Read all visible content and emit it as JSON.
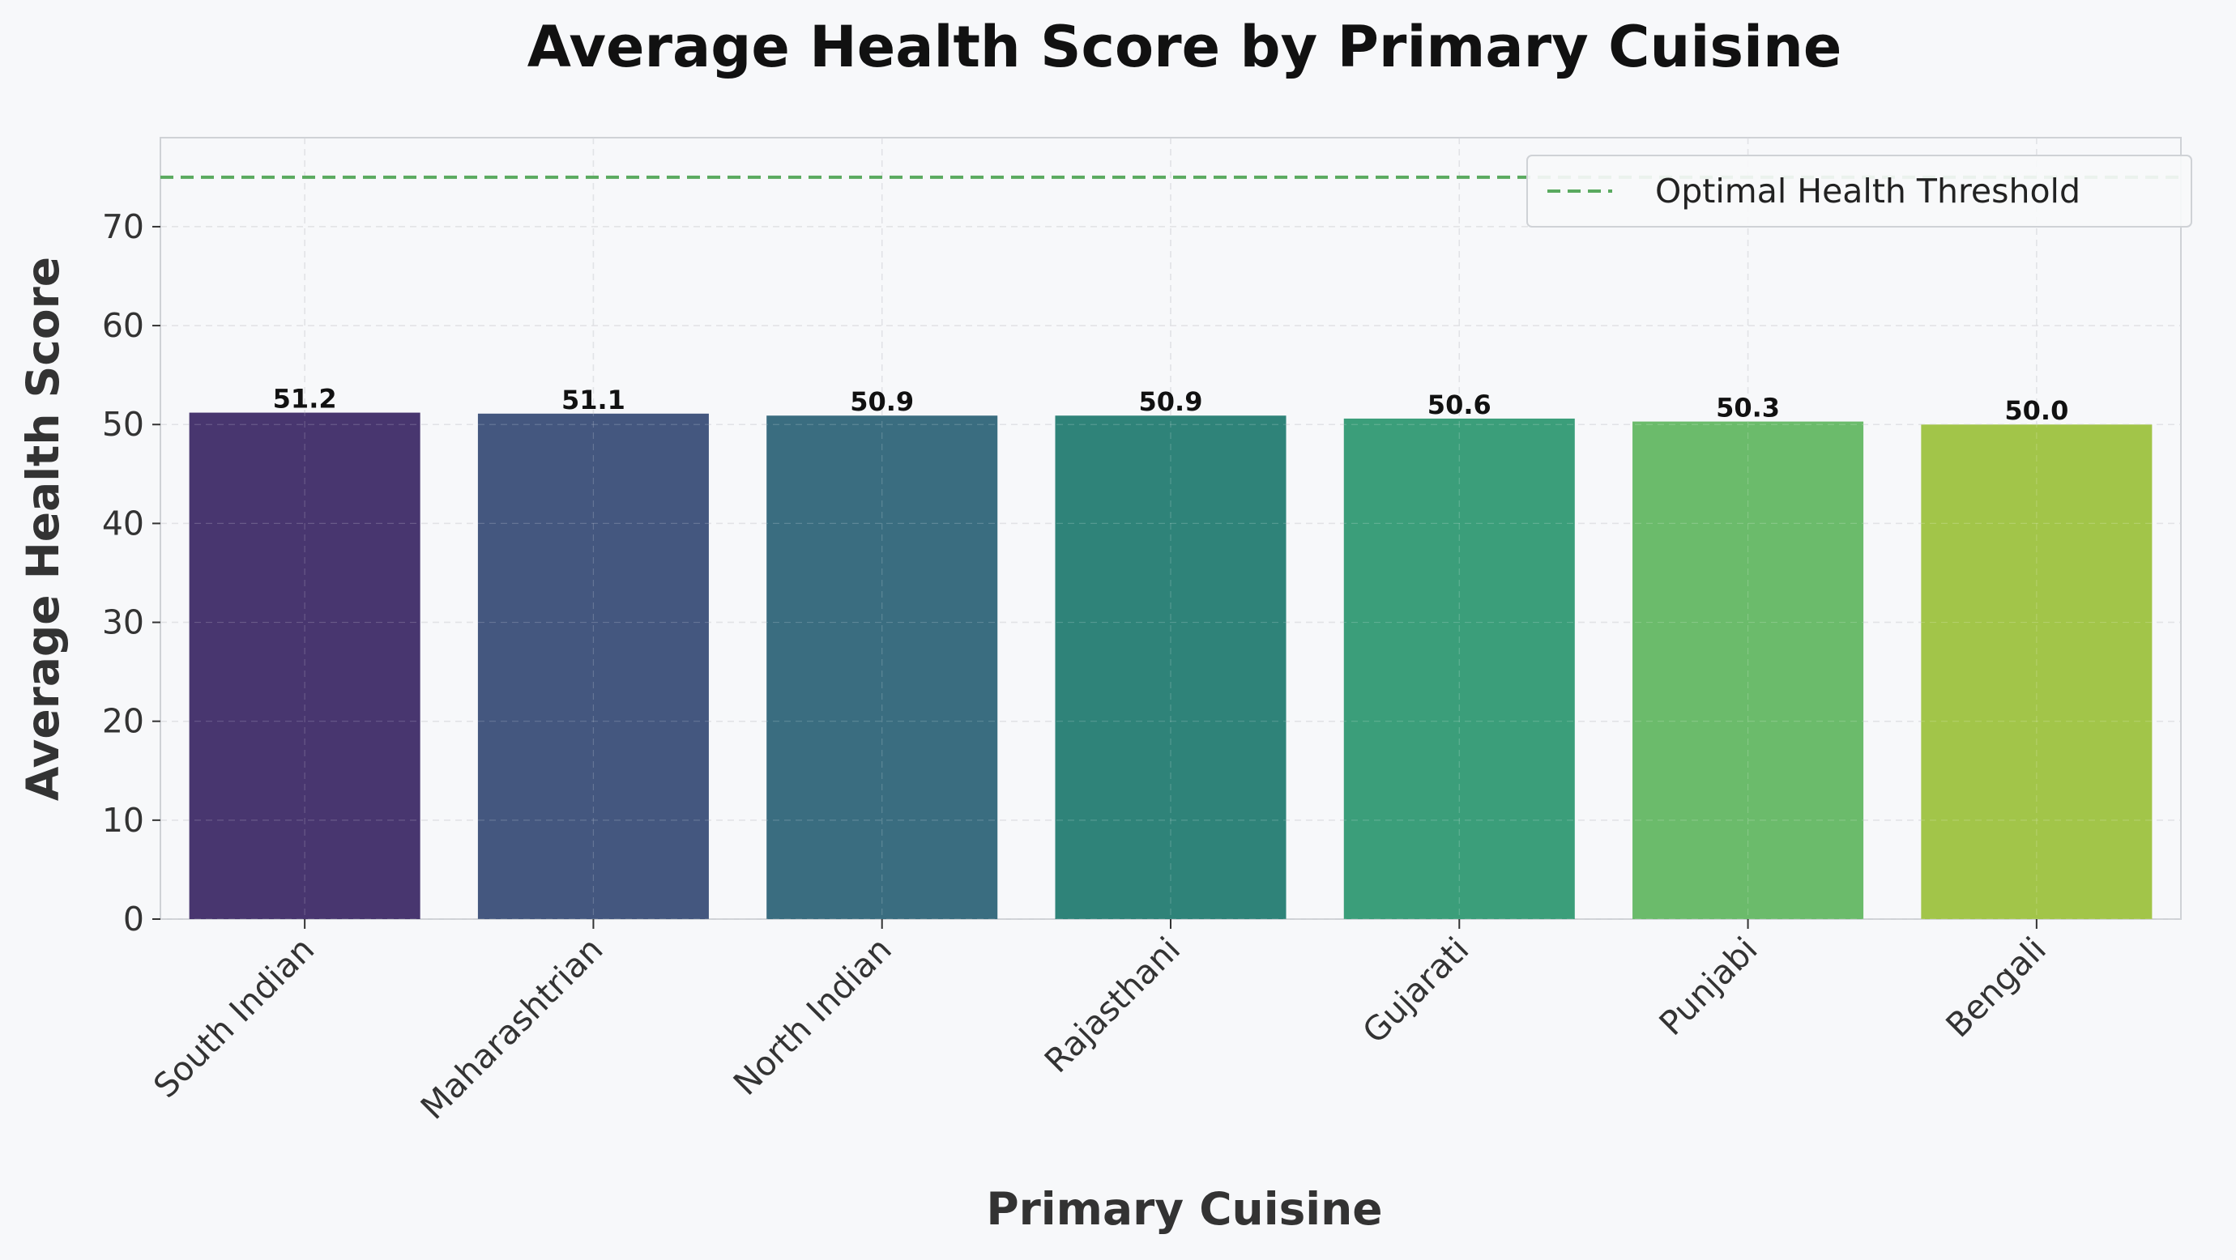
{
  "chart_data": {
    "type": "bar",
    "title": "Average Health Score by Primary Cuisine",
    "xlabel": "Primary Cuisine",
    "ylabel": "Average Health Score",
    "categories": [
      "South Indian",
      "Maharashtrian",
      "North Indian",
      "Rajasthani",
      "Gujarati",
      "Punjabi",
      "Bengali"
    ],
    "values": [
      51.2,
      51.1,
      50.9,
      50.9,
      50.6,
      50.3,
      50.0
    ],
    "value_labels": [
      "51.2",
      "51.1",
      "50.9",
      "50.9",
      "50.6",
      "50.3",
      "50.0"
    ],
    "colors": [
      "#48366f",
      "#44577f",
      "#3a6d80",
      "#2f8379",
      "#3b9e7a",
      "#6bbb6b",
      "#a2c549"
    ],
    "ylim": [
      0,
      79
    ],
    "yticks": [
      0,
      10,
      20,
      30,
      40,
      50,
      60,
      70
    ],
    "ytick_labels": [
      "0",
      "10",
      "20",
      "30",
      "40",
      "50",
      "60",
      "70"
    ],
    "threshold": {
      "value": 75,
      "label": "Optimal Health Threshold",
      "color": "#5aaa5f",
      "style": "dashed"
    },
    "legend_position": "top-right",
    "grid": true
  }
}
